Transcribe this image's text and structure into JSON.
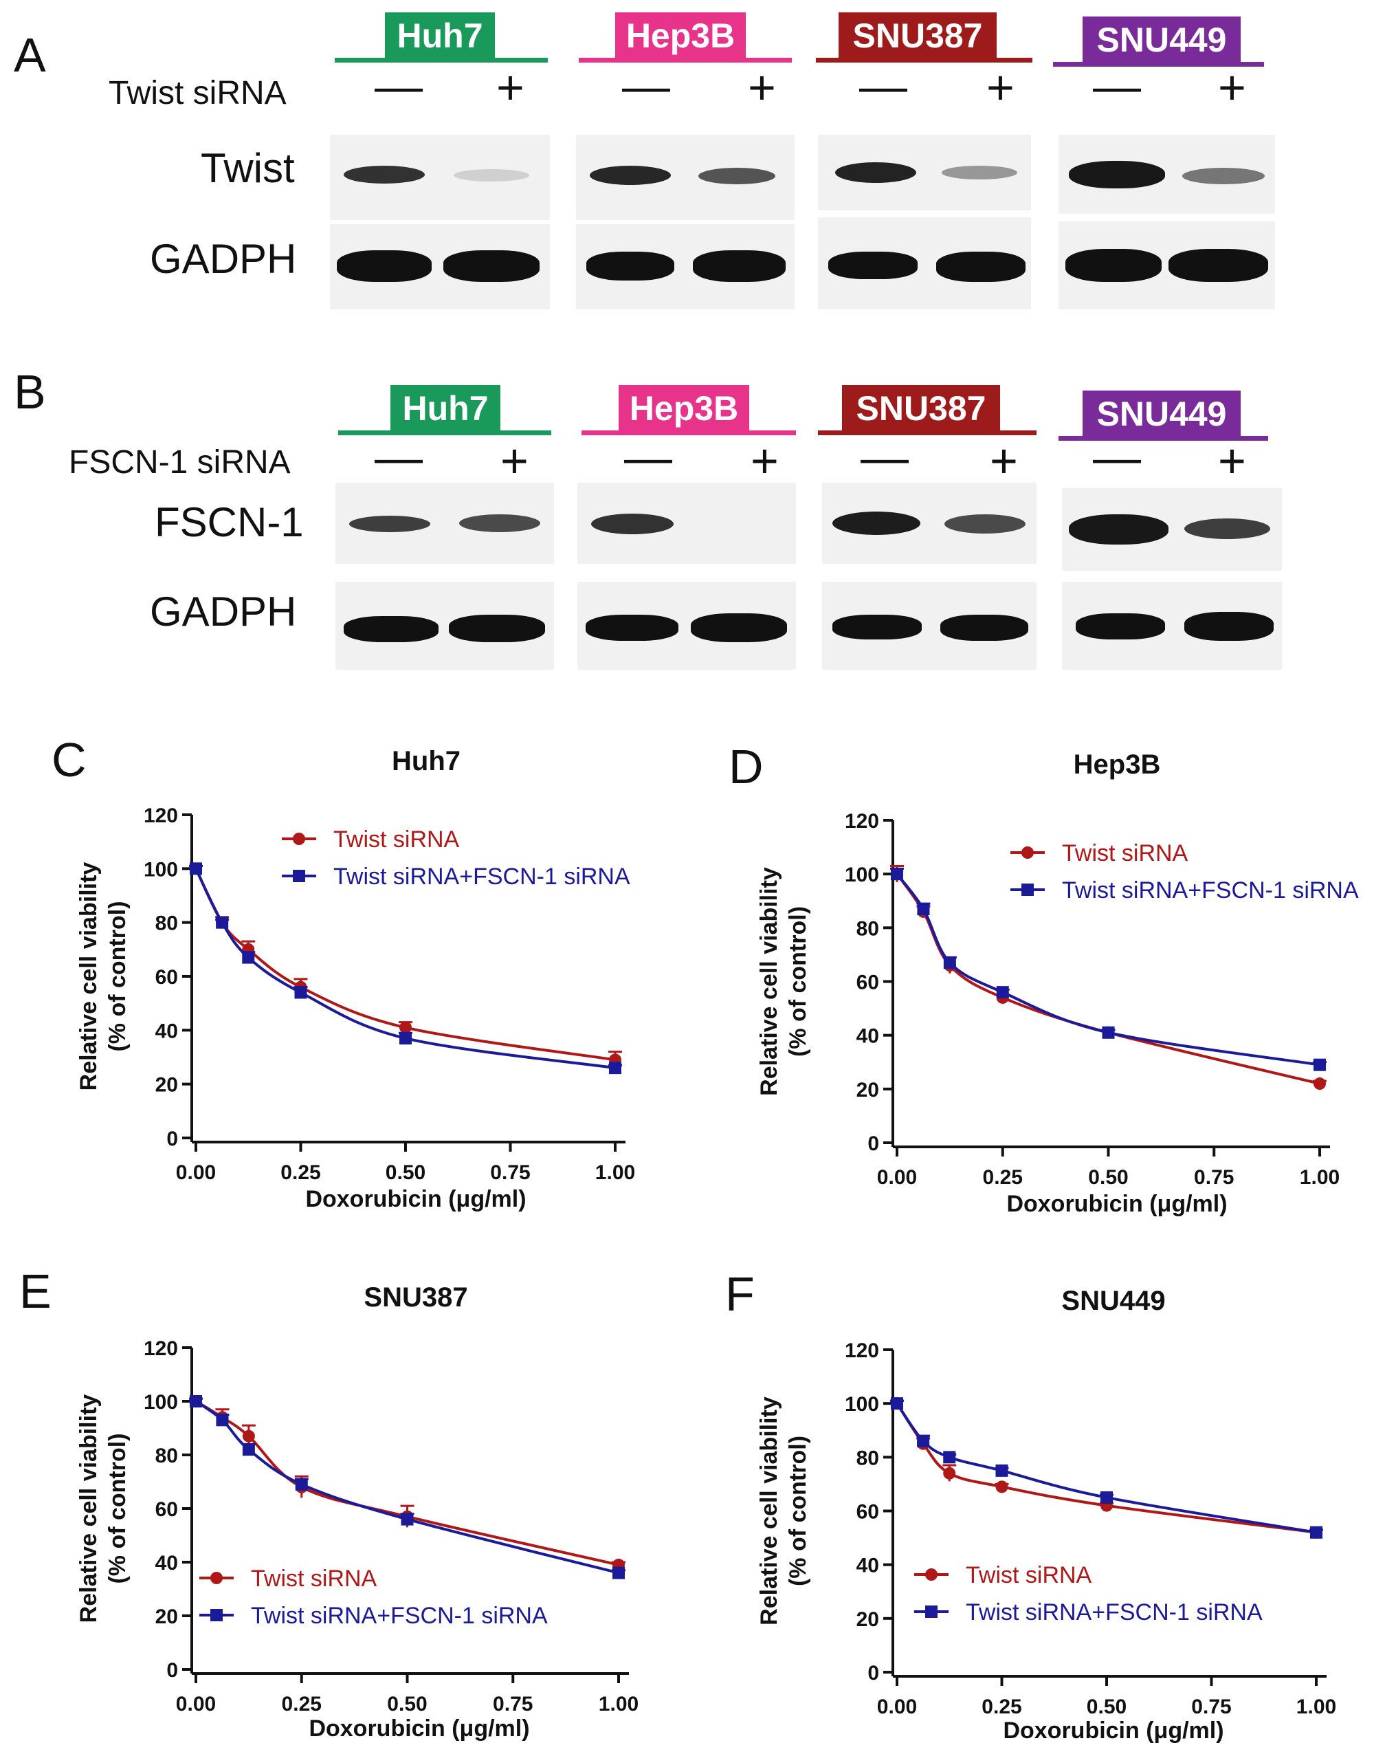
{
  "colors": {
    "huh7": "#1a9a5a",
    "hep3b": "#e8338a",
    "snu387": "#9e1b1b",
    "snu449": "#7a2b9a",
    "red_series": "#b01818",
    "blue_series": "#1b1b9a"
  },
  "blots": {
    "A": {
      "letter": "A",
      "condition_label": "Twist siRNA",
      "proteins": [
        "Twist",
        "GADPH"
      ],
      "cell_lines": [
        "Huh7",
        "Hep3B",
        "SNU387",
        "SNU449"
      ],
      "signs": [
        "—",
        "+"
      ]
    },
    "B": {
      "letter": "B",
      "condition_label": "FSCN-1 siRNA",
      "proteins": [
        "FSCN-1",
        "GADPH"
      ],
      "cell_lines": [
        "Huh7",
        "Hep3B",
        "SNU387",
        "SNU449"
      ],
      "signs": [
        "—",
        "+"
      ]
    }
  },
  "chart_data": [
    {
      "type": "line",
      "letter": "C",
      "title": "Huh7",
      "xlabel": "Doxorubicin (μg/ml)",
      "ylabel": [
        "Relative cell viability",
        "(% of control)"
      ],
      "xlim": [
        0,
        1
      ],
      "ylim": [
        0,
        120
      ],
      "xticks": [
        "0.00",
        "0.25",
        "0.50",
        "0.75",
        "1.00"
      ],
      "yticks": [
        "0",
        "20",
        "40",
        "60",
        "80",
        "100",
        "120"
      ],
      "legend": "top-right",
      "x": [
        0,
        0.0625,
        0.125,
        0.25,
        0.5,
        1.0
      ],
      "series": [
        {
          "name": "Twist siRNA",
          "values": [
            100,
            80,
            70,
            56,
            41,
            29
          ],
          "err": [
            1,
            2,
            3,
            3,
            2,
            3
          ]
        },
        {
          "name": "Twist siRNA+FSCN-1 siRNA",
          "values": [
            100,
            80,
            67,
            54,
            37,
            26
          ],
          "err": [
            1,
            1,
            2,
            2,
            2,
            1
          ]
        }
      ]
    },
    {
      "type": "line",
      "letter": "D",
      "title": "Hep3B",
      "xlabel": "Doxorubicin (μg/ml)",
      "ylabel": [
        "Relative cell viability",
        "(% of control)"
      ],
      "xlim": [
        0,
        1
      ],
      "ylim": [
        0,
        120
      ],
      "xticks": [
        "0.00",
        "0.25",
        "0.50",
        "0.75",
        "1.00"
      ],
      "yticks": [
        "0",
        "20",
        "40",
        "60",
        "80",
        "100",
        "120"
      ],
      "legend": "top-right",
      "x": [
        0,
        0.0625,
        0.125,
        0.25,
        0.5,
        1.0
      ],
      "series": [
        {
          "name": "Twist siRNA",
          "values": [
            100,
            86,
            66,
            54,
            41,
            22
          ],
          "err": [
            3,
            2,
            3,
            1,
            1,
            1
          ]
        },
        {
          "name": "Twist siRNA+FSCN-1 siRNA",
          "values": [
            100,
            87,
            67,
            56,
            41,
            29
          ],
          "err": [
            2,
            2,
            2,
            1,
            1,
            1
          ]
        }
      ]
    },
    {
      "type": "line",
      "letter": "E",
      "title": "SNU387",
      "xlabel": "Doxorubicin (μg/ml)",
      "ylabel": [
        "Relative cell viability",
        "(% of control)"
      ],
      "xlim": [
        0,
        1
      ],
      "ylim": [
        0,
        120
      ],
      "xticks": [
        "0.00",
        "0.25",
        "0.50",
        "0.75",
        "1.00"
      ],
      "yticks": [
        "0",
        "20",
        "40",
        "60",
        "80",
        "100",
        "120"
      ],
      "legend": "bottom-left",
      "x": [
        0,
        0.0625,
        0.125,
        0.25,
        0.5,
        1.0
      ],
      "series": [
        {
          "name": "Twist siRNA",
          "values": [
            100,
            94,
            87,
            68,
            57,
            39
          ],
          "err": [
            1,
            3,
            4,
            4,
            4,
            1
          ]
        },
        {
          "name": "Twist siRNA+FSCN-1 siRNA",
          "values": [
            100,
            93,
            82,
            69,
            56,
            36
          ],
          "err": [
            1,
            2,
            2,
            2,
            2,
            1
          ]
        }
      ]
    },
    {
      "type": "line",
      "letter": "F",
      "title": "SNU449",
      "xlabel": "Doxorubicin (μg/ml)",
      "ylabel": [
        "Relative cell viability",
        "(% of control)"
      ],
      "xlim": [
        0,
        1
      ],
      "ylim": [
        0,
        120
      ],
      "xticks": [
        "0.00",
        "0.25",
        "0.50",
        "0.75",
        "1.00"
      ],
      "yticks": [
        "0",
        "20",
        "40",
        "60",
        "80",
        "100",
        "120"
      ],
      "legend": "bottom-left",
      "x": [
        0,
        0.0625,
        0.125,
        0.25,
        0.5,
        1.0
      ],
      "series": [
        {
          "name": "Twist siRNA",
          "values": [
            100,
            85,
            74,
            69,
            62,
            52
          ],
          "err": [
            1,
            2,
            3,
            1,
            1,
            1
          ]
        },
        {
          "name": "Twist siRNA+FSCN-1 siRNA",
          "values": [
            100,
            86,
            80,
            75,
            65,
            52
          ],
          "err": [
            1,
            2,
            1,
            1,
            1,
            1
          ]
        }
      ]
    }
  ]
}
